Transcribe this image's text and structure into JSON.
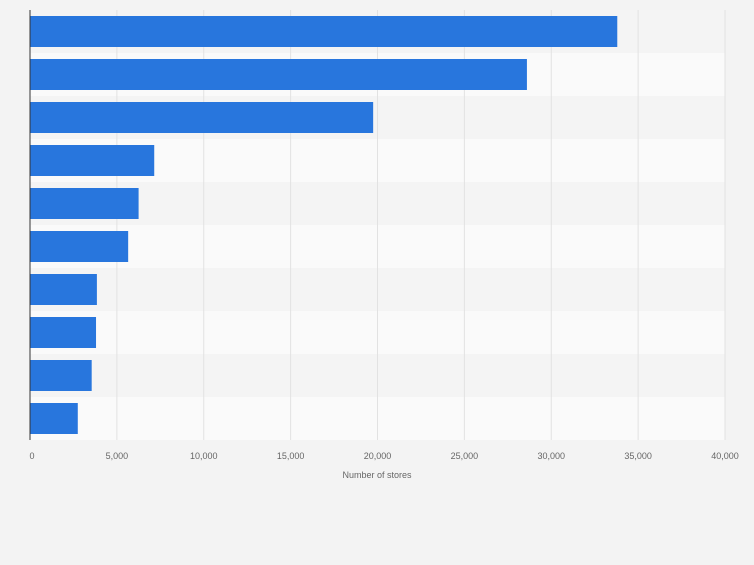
{
  "chart_data": {
    "type": "bar",
    "orientation": "horizontal",
    "categories": [
      "",
      "",
      "",
      "",
      "",
      "",
      "",
      "",
      "",
      ""
    ],
    "values": [
      33800,
      28600,
      19750,
      7150,
      6250,
      5650,
      3850,
      3800,
      3550,
      2750
    ],
    "xlabel": "Number of stores",
    "ylabel": "",
    "xlim": [
      0,
      40000
    ],
    "x_ticks": [
      0,
      5000,
      10000,
      15000,
      20000,
      25000,
      30000,
      35000,
      40000
    ],
    "x_tick_labels": [
      "0",
      "5,000",
      "10,000",
      "15,000",
      "20,000",
      "25,000",
      "30,000",
      "35,000",
      "40,000"
    ],
    "grid": true,
    "bar_color": "#2876dd",
    "band_colors": [
      "#f4f4f4",
      "#fafafa"
    ],
    "background": "#f3f3f3"
  }
}
